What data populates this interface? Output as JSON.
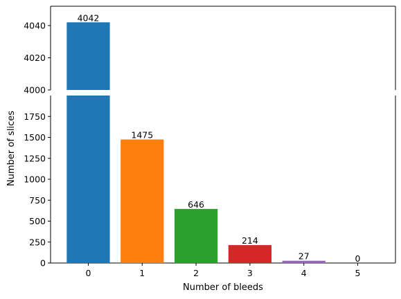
{
  "chart_data": {
    "type": "bar",
    "broken_axis": true,
    "categories": [
      "0",
      "1",
      "2",
      "3",
      "4",
      "5"
    ],
    "values": [
      4042,
      1475,
      646,
      214,
      27,
      0
    ],
    "data_labels": [
      "4042",
      "1475",
      "646",
      "214",
      "27",
      "0"
    ],
    "colors": [
      "#1f77b4",
      "#ff7f0e",
      "#2ca02c",
      "#d62728",
      "#9467bd",
      "#8c564b"
    ],
    "xlabel": "Number of bleeds",
    "ylabel": "Number of slices",
    "upper_ylim": [
      4000,
      4052
    ],
    "upper_yticks": [
      "4000",
      "4020",
      "4040"
    ],
    "lower_ylim": [
      0,
      2000
    ],
    "lower_yticks": [
      "0",
      "250",
      "500",
      "750",
      "1000",
      "1250",
      "1500",
      "1750"
    ],
    "grid": false,
    "legend": "none"
  }
}
